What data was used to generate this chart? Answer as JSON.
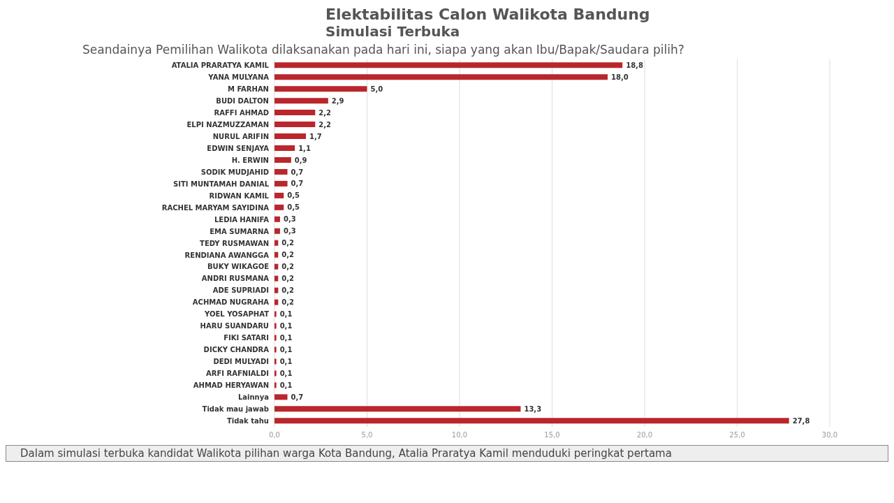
{
  "chart_data": {
    "type": "bar",
    "orientation": "horizontal",
    "title": "Elektabilitas Calon Walikota Bandung",
    "subtitle": "Simulasi Terbuka",
    "xlabel": "Seandainya Pemilihan Walikota dilaksanakan pada hari ini, siapa yang akan Ibu/Bapak/Saudara pilih?",
    "categories": [
      "ATALIA PRARATYA KAMIL",
      "YANA MULYANA",
      "M FARHAN",
      "BUDI DALTON",
      "RAFFI AHMAD",
      "ELPI NAZMUZZAMAN",
      "NURUL ARIFIN",
      "EDWIN SENJAYA",
      "H. ERWIN",
      "SODIK MUDJAHID",
      "SITI MUNTAMAH DANIAL",
      "RIDWAN KAMIL",
      "RACHEL MARYAM SAYIDINA",
      "LEDIA HANIFA",
      "EMA SUMARNA",
      "TEDY RUSMAWAN",
      "RENDIANA AWANGGA",
      "BUKY WIKAGOE",
      "ANDRI RUSMANA",
      "ADE SUPRIADI",
      "ACHMAD NUGRAHA",
      "YOEL YOSAPHAT",
      "HARU SUANDARU",
      "FIKI SATARI",
      "DICKY CHANDRA",
      "DEDI MULYADI",
      "ARFI RAFNIALDI",
      "AHMAD HERYAWAN",
      "Lainnya",
      "Tidak mau jawab",
      "Tidak tahu"
    ],
    "values": [
      18.8,
      18.0,
      5.0,
      2.9,
      2.2,
      2.2,
      1.7,
      1.1,
      0.9,
      0.7,
      0.7,
      0.5,
      0.5,
      0.3,
      0.3,
      0.2,
      0.2,
      0.2,
      0.2,
      0.2,
      0.2,
      0.1,
      0.1,
      0.1,
      0.1,
      0.1,
      0.1,
      0.1,
      0.7,
      13.3,
      27.8
    ],
    "value_labels": [
      "18,8",
      "18,0",
      "5,0",
      "2,9",
      "2,2",
      "2,2",
      "1,7",
      "1,1",
      "0,9",
      "0,7",
      "0,7",
      "0,5",
      "0,5",
      "0,3",
      "0,3",
      "0,2",
      "0,2",
      "0,2",
      "0,2",
      "0,2",
      "0,2",
      "0,1",
      "0,1",
      "0,1",
      "0,1",
      "0,1",
      "0,1",
      "0,1",
      "0,7",
      "13,3",
      "27,8"
    ],
    "color": "#b9262c",
    "xlim": [
      0,
      30
    ],
    "xticks": [
      {
        "value": 0,
        "label": "0,0"
      },
      {
        "value": 5,
        "label": "5,0"
      },
      {
        "value": 10,
        "label": "10,0"
      },
      {
        "value": 15,
        "label": "15,0"
      },
      {
        "value": 20,
        "label": "20,0"
      },
      {
        "value": 25,
        "label": "25,0"
      },
      {
        "value": 30,
        "label": "30,0"
      }
    ],
    "grid": "x",
    "annotations": [
      "Dalam simulasi terbuka kandidat Walikota pilihan warga Kota Bandung, Atalia Praratya Kamil menduduki peringkat pertama"
    ]
  }
}
